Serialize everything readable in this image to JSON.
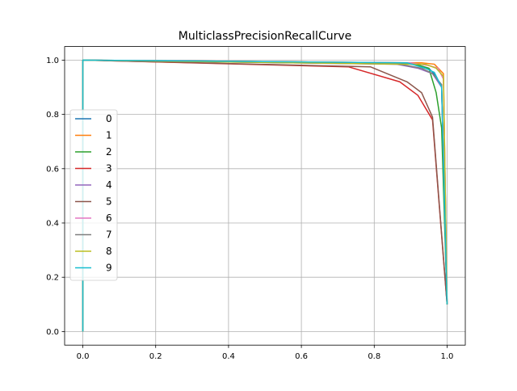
{
  "chart_data": {
    "type": "line",
    "title": "MulticlassPrecisionRecallCurve",
    "xlabel": "",
    "ylabel": "",
    "xlim": [
      -0.05,
      1.05
    ],
    "ylim": [
      -0.05,
      1.05
    ],
    "xticks": [
      0.0,
      0.2,
      0.4,
      0.6,
      0.8,
      1.0
    ],
    "yticks": [
      0.0,
      0.2,
      0.4,
      0.6,
      0.8,
      1.0
    ],
    "xtick_labels": [
      "0.0",
      "0.2",
      "0.4",
      "0.6",
      "0.8",
      "1.0"
    ],
    "ytick_labels": [
      "0.0",
      "0.2",
      "0.4",
      "0.6",
      "0.8",
      "1.0"
    ],
    "grid": true,
    "legend_position": "center-left",
    "series": [
      {
        "name": "0",
        "color": "#1f77b4",
        "x": [
          0.0,
          0.0,
          0.0,
          0.91,
          0.95,
          0.97,
          0.985,
          1.0
        ],
        "y": [
          0.0,
          1.0,
          1.0,
          0.985,
          0.97,
          0.94,
          0.9,
          0.1
        ]
      },
      {
        "name": "1",
        "color": "#ff7f0e",
        "x": [
          0.0,
          0.0,
          0.0,
          0.87,
          0.93,
          0.965,
          0.99,
          1.0
        ],
        "y": [
          0.0,
          1.0,
          1.0,
          0.99,
          0.99,
          0.985,
          0.95,
          0.1
        ]
      },
      {
        "name": "2",
        "color": "#2ca02c",
        "x": [
          0.0,
          0.0,
          0.0,
          0.9,
          0.95,
          0.97,
          0.985,
          1.0
        ],
        "y": [
          0.0,
          1.0,
          1.0,
          0.99,
          0.97,
          0.88,
          0.75,
          0.1
        ]
      },
      {
        "name": "3",
        "color": "#d62728",
        "x": [
          0.0,
          0.0,
          0.0,
          0.73,
          0.87,
          0.92,
          0.96,
          1.0
        ],
        "y": [
          0.0,
          1.0,
          1.0,
          0.975,
          0.92,
          0.87,
          0.78,
          0.1
        ]
      },
      {
        "name": "4",
        "color": "#9467bd",
        "x": [
          0.0,
          0.0,
          0.0,
          0.86,
          0.92,
          0.96,
          0.985,
          1.0
        ],
        "y": [
          0.0,
          1.0,
          1.0,
          0.985,
          0.97,
          0.95,
          0.9,
          0.1
        ]
      },
      {
        "name": "5",
        "color": "#8c564b",
        "x": [
          0.0,
          0.0,
          0.0,
          0.79,
          0.89,
          0.93,
          0.96,
          1.0
        ],
        "y": [
          0.0,
          1.0,
          1.0,
          0.975,
          0.92,
          0.88,
          0.79,
          0.1
        ]
      },
      {
        "name": "6",
        "color": "#e377c2",
        "x": [
          0.0,
          0.0,
          0.0,
          0.9,
          0.95,
          0.975,
          0.99,
          1.0
        ],
        "y": [
          0.0,
          1.0,
          1.0,
          0.99,
          0.98,
          0.97,
          0.93,
          0.1
        ]
      },
      {
        "name": "7",
        "color": "#7f7f7f",
        "x": [
          0.0,
          0.0,
          0.0,
          0.87,
          0.93,
          0.96,
          0.985,
          1.0
        ],
        "y": [
          0.0,
          1.0,
          1.0,
          0.985,
          0.97,
          0.95,
          0.91,
          0.1
        ]
      },
      {
        "name": "8",
        "color": "#bcbd22",
        "x": [
          0.0,
          0.0,
          0.0,
          0.88,
          0.94,
          0.97,
          0.99,
          1.0
        ],
        "y": [
          0.0,
          1.0,
          1.0,
          0.985,
          0.985,
          0.97,
          0.94,
          0.1
        ]
      },
      {
        "name": "9",
        "color": "#17becf",
        "x": [
          0.0,
          0.0,
          0.0,
          0.89,
          0.94,
          0.965,
          0.985,
          1.0
        ],
        "y": [
          0.0,
          1.0,
          1.0,
          0.99,
          0.97,
          0.955,
          0.9,
          0.1
        ]
      }
    ]
  }
}
